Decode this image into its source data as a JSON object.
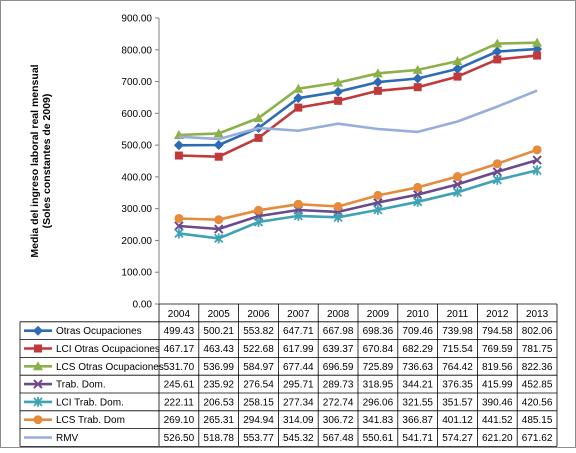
{
  "chart_data": {
    "type": "line",
    "ylabel_line1": "Media del ingreso laboral real mensual",
    "ylabel_line2": "(Soles constantes de 2009)",
    "ylim": [
      0,
      900
    ],
    "ytick_step": 100,
    "ytick_labels": [
      "0.00",
      "100.00",
      "200.00",
      "300.00",
      "400.00",
      "500.00",
      "600.00",
      "700.00",
      "800.00",
      "900.00"
    ],
    "categories": [
      "2004",
      "2005",
      "2006",
      "2007",
      "2008",
      "2009",
      "2010",
      "2011",
      "2012",
      "2013"
    ],
    "legend": "data-table",
    "series": [
      {
        "name": "Otras Ocupaciones",
        "color": "#2E6BB5",
        "marker": "diamond",
        "values": [
          499.43,
          500.21,
          553.82,
          647.71,
          667.98,
          698.36,
          709.46,
          739.98,
          794.58,
          802.06
        ],
        "labels": [
          "499.43",
          "500.21",
          "553.82",
          "647.71",
          "667.98",
          "698.36",
          "709.46",
          "739.98",
          "794.58",
          "802.06"
        ]
      },
      {
        "name": "LCI Otras Ocupaciones",
        "color": "#C0393B",
        "marker": "square",
        "values": [
          467.17,
          463.43,
          522.68,
          617.99,
          639.37,
          670.84,
          682.29,
          715.54,
          769.59,
          781.75
        ],
        "labels": [
          "467.17",
          "463.43",
          "522.68",
          "617.99",
          "639.37",
          "670.84",
          "682.29",
          "715.54",
          "769.59",
          "781.75"
        ]
      },
      {
        "name": "LCS Otras Ocupaciones",
        "color": "#8DB04A",
        "marker": "triangle",
        "values": [
          531.7,
          536.99,
          584.97,
          677.44,
          696.59,
          725.89,
          736.63,
          764.42,
          819.56,
          822.36
        ],
        "labels": [
          "531.70",
          "536.99",
          "584.97",
          "677.44",
          "696.59",
          "725.89",
          "736.63",
          "764.42",
          "819.56",
          "822.36"
        ]
      },
      {
        "name": "Trab. Dom.",
        "color": "#6A4A8C",
        "marker": "x",
        "values": [
          245.61,
          235.92,
          276.54,
          295.71,
          289.73,
          318.95,
          344.21,
          376.35,
          415.99,
          452.85
        ],
        "labels": [
          "245.61",
          "235.92",
          "276.54",
          "295.71",
          "289.73",
          "318.95",
          "344.21",
          "376.35",
          "415.99",
          "452.85"
        ]
      },
      {
        "name": "LCI Trab. Dom.",
        "color": "#3FA2B5",
        "marker": "star",
        "values": [
          222.11,
          206.53,
          258.15,
          277.34,
          272.74,
          296.06,
          321.55,
          351.57,
          390.46,
          420.56
        ],
        "labels": [
          "222.11",
          "206.53",
          "258.15",
          "277.34",
          "272.74",
          "296.06",
          "321.55",
          "351.57",
          "390.46",
          "420.56"
        ]
      },
      {
        "name": "LCS Trab. Dom",
        "color": "#E68A3C",
        "marker": "circle",
        "values": [
          269.1,
          265.31,
          294.94,
          314.09,
          306.72,
          341.83,
          366.87,
          401.12,
          441.52,
          485.15
        ],
        "labels": [
          "269.10",
          "265.31",
          "294.94",
          "314.09",
          "306.72",
          "341.83",
          "366.87",
          "401.12",
          "441.52",
          "485.15"
        ]
      },
      {
        "name": "RMV",
        "color": "#97AEDB",
        "marker": "none",
        "values": [
          526.5,
          518.78,
          553.77,
          545.32,
          567.48,
          550.61,
          541.71,
          574.27,
          621.2,
          671.62
        ],
        "labels": [
          "526.50",
          "518.78",
          "553.77",
          "545.32",
          "567.48",
          "550.61",
          "541.71",
          "574.27",
          "621.20",
          "671.62"
        ]
      }
    ]
  }
}
